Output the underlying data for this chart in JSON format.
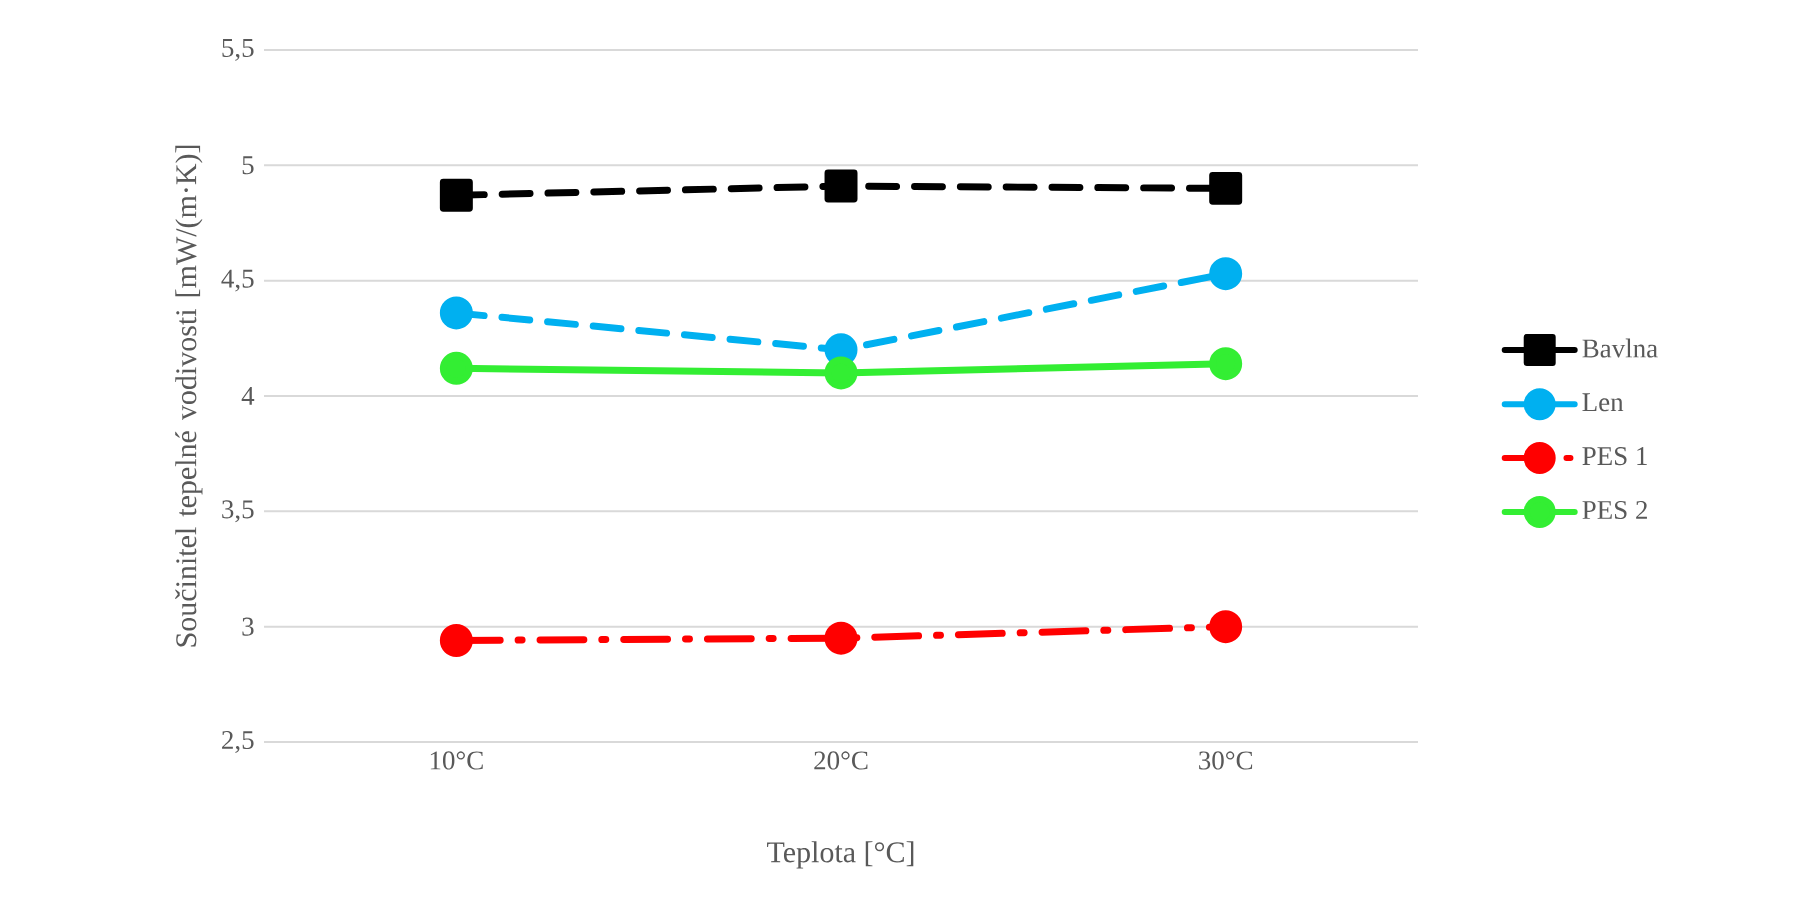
{
  "chart_data": {
    "type": "line",
    "xlabel": "Teplota [°C]",
    "ylabel": "Součinitel tepelné vodivosti [mW/(m·K)]",
    "categories": [
      "10°C",
      "20°C",
      "30°C"
    ],
    "series": [
      {
        "name": "Bavlna",
        "color": "#000000",
        "values": [
          4.87,
          4.91,
          4.9
        ],
        "marker": "square",
        "line_style": "dashed"
      },
      {
        "name": "Len",
        "color": "#00b0f0",
        "values": [
          4.36,
          4.2,
          4.53
        ],
        "marker": "circle",
        "line_style": "dashed"
      },
      {
        "name": "PES 1",
        "color": "#ff0000",
        "values": [
          2.94,
          2.95,
          3.0
        ],
        "marker": "circle",
        "line_style": "dashdot"
      },
      {
        "name": "PES 2",
        "color": "#33ee33",
        "values": [
          4.12,
          4.1,
          4.14
        ],
        "marker": "circle",
        "line_style": "solid"
      }
    ],
    "ylim": [
      2.5,
      5.5
    ],
    "yticks": [
      {
        "value": 2.5,
        "label": "2,5"
      },
      {
        "value": 3,
        "label": "3"
      },
      {
        "value": 3.5,
        "label": "3,5"
      },
      {
        "value": 4,
        "label": "4"
      },
      {
        "value": 4.5,
        "label": "4,5"
      },
      {
        "value": 5,
        "label": "5"
      },
      {
        "value": 5.5,
        "label": "5,5"
      }
    ],
    "grid": "y",
    "legend": "right"
  }
}
